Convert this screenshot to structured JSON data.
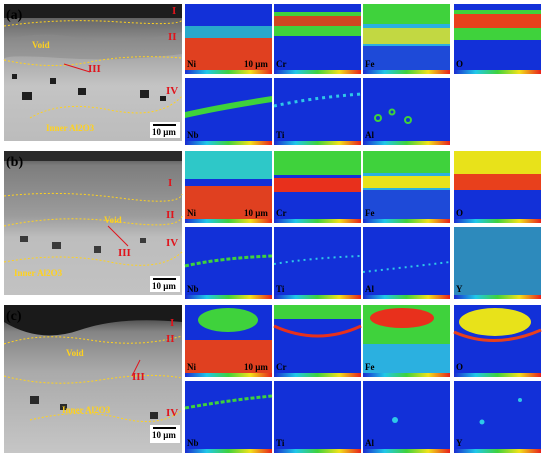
{
  "colors": {
    "void_line": "#ffd21e",
    "roman_numerals": "#e0141c",
    "map_background": "#1230d8"
  },
  "panels": [
    {
      "label": "(a)",
      "regions": [
        "I",
        "II",
        "III",
        "IV"
      ],
      "annotations": [
        "Void",
        "Inner Al2O3"
      ],
      "scale": "10 μm",
      "maps_row1": [
        "Ni",
        "Cr",
        "Fe",
        "O"
      ],
      "map_scale": "10 μm",
      "maps_row2": [
        "Nb",
        "Ti",
        "Al"
      ]
    },
    {
      "label": "(b)",
      "regions": [
        "I",
        "II",
        "III",
        "IV"
      ],
      "annotations": [
        "Void",
        "Inner Al2O3"
      ],
      "scale": "10 μm",
      "maps_row1": [
        "Ni",
        "Cr",
        "Fe",
        "O"
      ],
      "map_scale": "10 μm",
      "maps_row2": [
        "Nb",
        "Ti",
        "Al",
        "Y"
      ]
    },
    {
      "label": "(c)",
      "regions": [
        "I",
        "II",
        "III",
        "IV"
      ],
      "annotations": [
        "Void",
        "Inner Al2O3"
      ],
      "scale": "10 μm",
      "maps_row1": [
        "Ni",
        "Cr",
        "Fe",
        "O"
      ],
      "map_scale": "10 μm",
      "maps_row2": [
        "Nb",
        "Ti",
        "Al",
        "Y"
      ]
    }
  ]
}
